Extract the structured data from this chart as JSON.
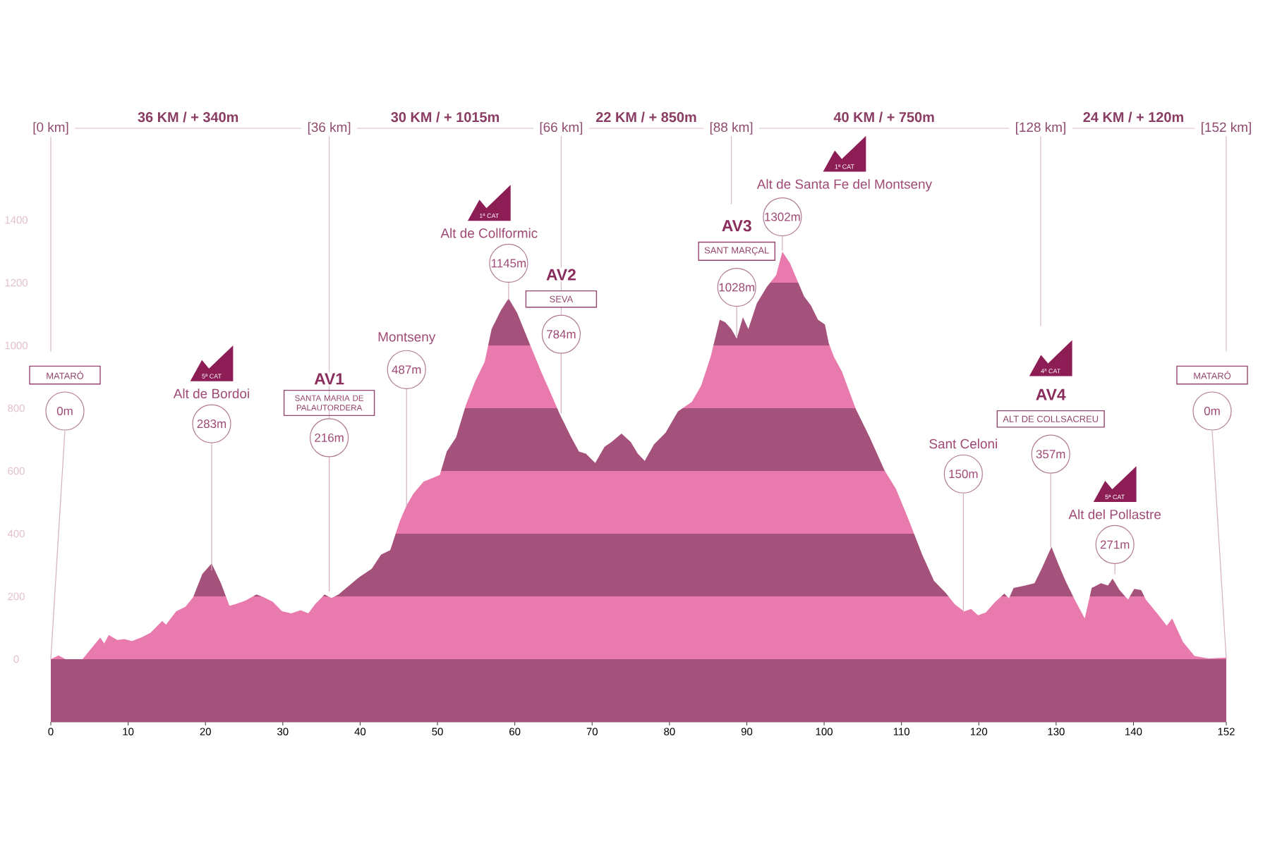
{
  "chart_data": {
    "type": "area",
    "x": [
      0,
      1.0,
      1.9,
      4.1,
      6.4,
      6.9,
      7.5,
      8.6,
      9.5,
      10.5,
      11.7,
      12.9,
      14.4,
      14.9,
      16.2,
      17.4,
      18.4,
      19.6,
      20.8,
      22.0,
      23.1,
      23.8,
      25.1,
      26.6,
      27.5,
      28.7,
      29.9,
      31.1,
      32.3,
      33.3,
      34.2,
      35.4,
      36.3,
      37.2,
      39.7,
      41.5,
      42.7,
      43.9,
      45.1,
      46.0,
      46.9,
      48.2,
      50.3,
      51.2,
      52.4,
      53.7,
      54.9,
      56.1,
      57.0,
      58.2,
      59.2,
      60.3,
      61.9,
      63.4,
      64.6,
      65.8,
      67.3,
      68.3,
      69.2,
      70.4,
      71.6,
      72.5,
      73.8,
      75.0,
      75.9,
      76.8,
      78.0,
      79.5,
      81.1,
      82.9,
      84.1,
      85.3,
      86.5,
      87.2,
      88.0,
      88.7,
      89.5,
      90.2,
      91.3,
      92.6,
      93.8,
      94.6,
      95.6,
      96.5,
      97.4,
      98.3,
      99.2,
      100.1,
      100.6,
      101.3,
      102.3,
      104.1,
      105.9,
      107.8,
      109.3,
      110.8,
      112.7,
      114.2,
      115.7,
      116.9,
      118.1,
      119.0,
      119.9,
      120.9,
      122.1,
      123.3,
      123.9,
      124.5,
      126.0,
      127.2,
      128.1,
      129.4,
      130.3,
      131.2,
      132.4,
      133.7,
      134.6,
      135.8,
      136.7,
      137.3,
      138.2,
      139.3,
      140.1,
      141.0,
      141.6,
      143.1,
      144.3,
      145.0,
      146.4,
      147.9,
      149.7,
      152
    ],
    "series": [
      {
        "color": "#e97aad",
        "values": [
          0,
          12,
          0,
          0,
          69,
          50,
          77,
          61,
          64,
          58,
          69,
          84,
          122,
          110,
          152,
          167,
          197,
          272,
          305,
          242,
          170,
          175,
          186,
          206,
          198,
          183,
          153,
          146,
          156,
          146,
          176,
          206,
          195,
          206,
          258,
          288,
          333,
          348,
          438,
          490,
          528,
          566,
          587,
          662,
          707,
          812,
          887,
          947,
          1052,
          1112,
          1150,
          1104,
          1007,
          917,
          850,
          782,
          707,
          662,
          655,
          625,
          677,
          692,
          719,
          692,
          655,
          632,
          685,
          722,
          790,
          820,
          872,
          962,
          1082,
          1074,
          1052,
          1022,
          1090,
          1052,
          1134,
          1187,
          1224,
          1299,
          1262,
          1209,
          1157,
          1127,
          1082,
          1067,
          1007,
          962,
          917,
          797,
          707,
          602,
          542,
          452,
          332,
          250,
          212,
          175,
          152,
          160,
          140,
          149,
          182,
          209,
          194,
          227,
          235,
          242,
          287,
          358,
          302,
          250,
          190,
          130,
          227,
          242,
          235,
          257,
          220,
          190,
          224,
          220,
          190,
          145,
          107,
          130,
          55,
          10,
          2,
          5
        ]
      }
    ],
    "xlim": [
      0,
      152
    ],
    "ylim": [
      -200,
      1400
    ],
    "xticks": [
      0,
      10,
      20,
      30,
      40,
      50,
      60,
      70,
      80,
      90,
      100,
      110,
      120,
      130,
      140,
      152
    ],
    "yticks": [
      0,
      200,
      400,
      600,
      800,
      1000,
      1200,
      1400
    ],
    "bands": [
      {
        "axis": "y",
        "from": -200,
        "to": 0,
        "color": "#a4527b"
      },
      {
        "axis": "y",
        "from": 200,
        "to": 400,
        "color": "#a4527b"
      },
      {
        "axis": "y",
        "from": 600,
        "to": 800,
        "color": "#a4527b"
      },
      {
        "axis": "y",
        "from": 1000,
        "to": 1200,
        "color": "#a4527b"
      }
    ],
    "ref_lines": [
      {
        "axis": "x",
        "value": 36,
        "label": "[36 km]"
      },
      {
        "axis": "x",
        "value": 66,
        "label": "[66 km]"
      },
      {
        "axis": "x",
        "value": 88,
        "label": "[88 km]"
      },
      {
        "axis": "x",
        "value": 128,
        "label": "[128 km]"
      }
    ],
    "annotations": [
      "[0 km]",
      "36 KM / + 340m",
      "30 KM / + 1015m",
      "22 KM / + 850m",
      "40 KM / + 750m",
      "24 KM / + 120m",
      "[152 km]",
      {
        "text": "0m",
        "x": 0,
        "y": 0
      },
      "MATARÓ",
      {
        "text": "283m",
        "x": 20.8,
        "y": 283
      },
      "Alt de Bordoi",
      "5ª CAT",
      {
        "text": "216m",
        "x": 36,
        "y": 216
      },
      "SANTA MARIA DE PALAUTORDERA",
      "AV1",
      {
        "text": "487m",
        "x": 46,
        "y": 487
      },
      "Montseny",
      {
        "text": "1145m",
        "x": 59.2,
        "y": 1145
      },
      "Alt de Collformic",
      "1ª CAT",
      {
        "text": "784m",
        "x": 66,
        "y": 784
      },
      "SEVA",
      "AV2",
      {
        "text": "1028m",
        "x": 88.7,
        "y": 1028
      },
      "SANT MARÇAL",
      "AV3",
      {
        "text": "1302m",
        "x": 94.6,
        "y": 1302
      },
      "Alt de Santa Fe del Montseny",
      "1ª CAT",
      {
        "text": "150m",
        "x": 118,
        "y": 150
      },
      "Sant Celoni",
      {
        "text": "357m",
        "x": 129.3,
        "y": 357
      },
      "ALT DE COLLSACREU",
      "AV4",
      "4ª CAT",
      {
        "text": "271m",
        "x": 137.6,
        "y": 271
      },
      "Alt del Pollastre",
      "5ª CAT",
      {
        "text": "0m",
        "x": 152,
        "y": 0
      },
      "MATARÓ"
    ]
  }
}
